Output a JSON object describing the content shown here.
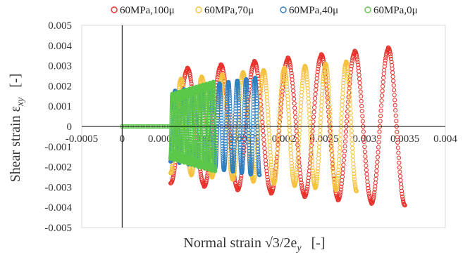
{
  "chart_data": {
    "type": "scatter",
    "xlabel": "Normal strain  √3/2e",
    "xlabel_sub": "y",
    "xlabel_unit": "[-]",
    "ylabel": "Shear strain  ε",
    "ylabel_sub": "xy",
    "ylabel_unit": "[-]",
    "xlim": [
      -0.0005,
      0.004
    ],
    "ylim": [
      -0.005,
      0.005
    ],
    "xticks": [
      "-0.0005",
      "0",
      "0.0005",
      "0.001",
      "0.0015",
      "0.002",
      "0.0025",
      "0.003",
      "0.0035",
      "0.004"
    ],
    "yticks": [
      "0.005",
      "0.004",
      "0.003",
      "0.002",
      "0.001",
      "0",
      "-0.001",
      "-0.002",
      "-0.003",
      "-0.004",
      "-0.005"
    ],
    "legend_position": "top",
    "series": [
      {
        "name": "60MPa,100μ",
        "color": "#e8302a",
        "amplitude": 0.0039,
        "x_start": 0.0006,
        "x_end": 0.0035,
        "sweeps": 14
      },
      {
        "name": "60MPa,70μ",
        "color": "#f6c23e",
        "amplitude": 0.0032,
        "x_start": 0.0006,
        "x_end": 0.0029,
        "sweeps": 18
      },
      {
        "name": "60MPa,40μ",
        "color": "#2f7ec2",
        "amplitude": 0.0024,
        "x_start": 0.0006,
        "x_end": 0.0017,
        "sweeps": 20
      },
      {
        "name": "60MPa,0μ",
        "color": "#5cc84a",
        "amplitude": 0.0022,
        "x_start": 0.0006,
        "x_end": 0.00115,
        "sweeps": 26
      }
    ],
    "initial_segment": {
      "x": [
        0,
        0.0006
      ],
      "y": 0
    }
  }
}
